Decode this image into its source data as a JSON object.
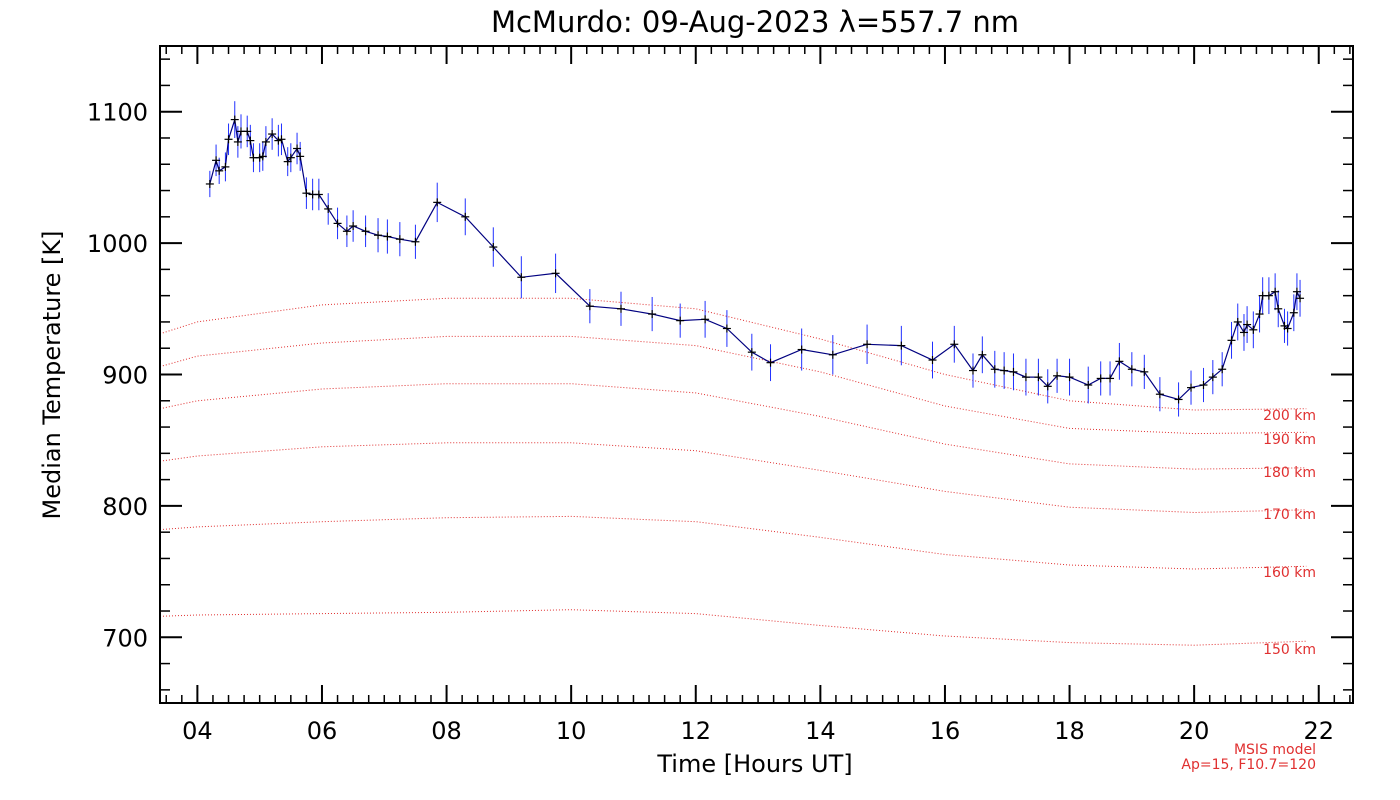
{
  "chart_data": {
    "type": "line",
    "title": "McMurdo: 09-Aug-2023 λ=557.7 nm",
    "xlabel": "Time [Hours UT]",
    "ylabel": "Median Temperature [K]",
    "xlim": [
      3.4,
      22.55
    ],
    "ylim": [
      650,
      1150
    ],
    "xticks": [
      4,
      6,
      8,
      10,
      12,
      14,
      16,
      18,
      20,
      22
    ],
    "xtick_labels": [
      "04",
      "06",
      "08",
      "10",
      "12",
      "14",
      "16",
      "18",
      "20",
      "22"
    ],
    "yticks": [
      700,
      800,
      900,
      1000,
      1100
    ],
    "ytick_labels": [
      "700",
      "800",
      "900",
      "1000",
      "1100"
    ],
    "grid": false,
    "series": [
      {
        "color": "#000080",
        "error_color": "#2030ff",
        "marker": "+",
        "x": [
          4.2,
          4.3,
          4.35,
          4.45,
          4.5,
          4.6,
          4.65,
          4.7,
          4.8,
          4.85,
          4.9,
          5.0,
          5.05,
          5.1,
          5.2,
          5.3,
          5.35,
          5.45,
          5.5,
          5.6,
          5.65,
          5.75,
          5.85,
          5.95,
          6.1,
          6.25,
          6.4,
          6.5,
          6.7,
          6.9,
          7.05,
          7.25,
          7.5,
          7.85,
          8.3,
          8.75,
          9.2,
          9.75,
          10.3,
          10.8,
          11.3,
          11.75,
          12.15,
          12.5,
          12.9,
          13.2,
          13.7,
          14.2,
          14.75,
          15.3,
          15.8,
          16.15,
          16.45,
          16.6,
          16.8,
          16.95,
          17.1,
          17.3,
          17.5,
          17.65,
          17.8,
          18.0,
          18.3,
          18.5,
          18.65,
          18.8,
          19.0,
          19.2,
          19.45,
          19.75,
          19.95,
          20.15,
          20.3,
          20.45,
          20.6,
          20.7,
          20.8,
          20.85,
          20.95,
          21.05,
          21.1,
          21.2,
          21.3,
          21.35,
          21.45,
          21.5,
          21.6,
          21.65,
          21.7
        ],
        "values": [
          1045,
          1063,
          1055,
          1058,
          1079,
          1094,
          1077,
          1085,
          1085,
          1078,
          1065,
          1065,
          1066,
          1077,
          1083,
          1078,
          1079,
          1062,
          1065,
          1072,
          1066,
          1038,
          1037,
          1037,
          1026,
          1015,
          1009,
          1013,
          1009,
          1006,
          1005,
          1003,
          1001,
          1031,
          1020,
          997,
          974,
          977,
          952,
          950,
          946,
          941,
          942,
          935,
          917,
          909,
          919,
          915,
          923,
          922,
          911,
          923,
          903,
          915,
          904,
          903,
          902,
          898,
          898,
          891,
          899,
          898,
          892,
          897,
          897,
          910,
          904,
          902,
          885,
          881,
          890,
          892,
          898,
          904,
          926,
          940,
          932,
          938,
          934,
          946,
          960,
          960,
          963,
          950,
          937,
          935,
          947,
          963,
          958
        ],
        "errors": [
          10,
          12,
          10,
          11,
          12,
          14,
          12,
          13,
          12,
          12,
          11,
          11,
          11,
          12,
          12,
          12,
          12,
          11,
          11,
          12,
          11,
          12,
          12,
          12,
          12,
          12,
          12,
          12,
          12,
          13,
          13,
          13,
          13,
          15,
          14,
          15,
          16,
          15,
          13,
          13,
          13,
          13,
          14,
          14,
          14,
          14,
          16,
          15,
          15,
          15,
          14,
          14,
          13,
          14,
          14,
          14,
          14,
          14,
          14,
          13,
          13,
          14,
          14,
          13,
          13,
          14,
          13,
          13,
          13,
          13,
          13,
          13,
          13,
          13,
          14,
          14,
          14,
          14,
          14,
          14,
          14,
          14,
          14,
          14,
          13,
          13,
          14,
          14,
          14
        ]
      }
    ],
    "model": {
      "color": "#e03030",
      "x": [
        3.4,
        4,
        6,
        8,
        10,
        12,
        14,
        16,
        18,
        20,
        21.8
      ],
      "lines": [
        {
          "label": "200 km",
          "values": [
            931,
            940,
            953,
            958,
            958,
            950,
            927,
            900,
            880,
            873,
            874
          ]
        },
        {
          "label": "190 km",
          "values": [
            906,
            914,
            924,
            929,
            929,
            922,
            902,
            876,
            859,
            855,
            856
          ]
        },
        {
          "label": "180 km",
          "values": [
            874,
            880,
            889,
            893,
            893,
            886,
            868,
            847,
            832,
            828,
            829
          ]
        },
        {
          "label": "170 km",
          "values": [
            834,
            838,
            845,
            848,
            848,
            842,
            827,
            811,
            799,
            795,
            797
          ]
        },
        {
          "label": "160 km",
          "values": [
            782,
            784,
            788,
            791,
            792,
            788,
            776,
            763,
            755,
            752,
            754
          ]
        },
        {
          "label": "150 km",
          "values": [
            716,
            717,
            718,
            719,
            721,
            718,
            709,
            701,
            696,
            694,
            697
          ]
        }
      ],
      "note_line1": "MSIS model",
      "note_line2": "Ap=15, F10.7=120"
    }
  }
}
